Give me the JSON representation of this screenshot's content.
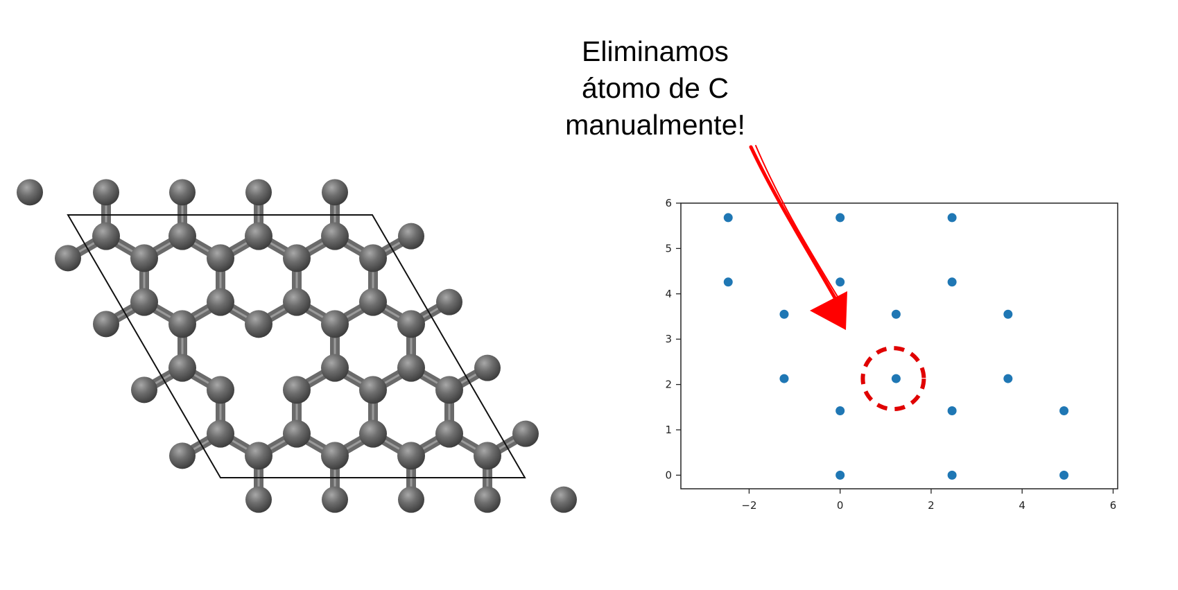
{
  "annotation": {
    "lines": [
      "Eliminamos",
      "átomo de C",
      "manualmente!"
    ]
  },
  "colors": {
    "point": "#1f77b4",
    "arrow": "#ff0000",
    "highlight": "#e00000",
    "atom": "#5e5e5e",
    "bond": "#6a6a6a"
  },
  "chart_data": {
    "type": "scatter",
    "title": "",
    "xlabel": "",
    "ylabel": "",
    "xlim": [
      -3.5,
      6.1
    ],
    "ylim": [
      -0.3,
      6.0
    ],
    "xticks": [
      -2,
      0,
      2,
      4,
      6
    ],
    "yticks": [
      0,
      1,
      2,
      3,
      4,
      5,
      6
    ],
    "points": [
      {
        "x": -2.46,
        "y": 5.68
      },
      {
        "x": 0.0,
        "y": 5.68
      },
      {
        "x": 2.46,
        "y": 5.68
      },
      {
        "x": -2.46,
        "y": 4.26
      },
      {
        "x": 0.0,
        "y": 4.26
      },
      {
        "x": 2.46,
        "y": 4.26
      },
      {
        "x": -1.23,
        "y": 3.55
      },
      {
        "x": 1.23,
        "y": 3.55
      },
      {
        "x": 3.69,
        "y": 3.55
      },
      {
        "x": -1.23,
        "y": 2.13
      },
      {
        "x": 1.23,
        "y": 2.13
      },
      {
        "x": 3.69,
        "y": 2.13
      },
      {
        "x": 0.0,
        "y": 1.42
      },
      {
        "x": 2.46,
        "y": 1.42
      },
      {
        "x": 4.92,
        "y": 1.42
      },
      {
        "x": 0.0,
        "y": 0.0
      },
      {
        "x": 2.46,
        "y": 0.0
      },
      {
        "x": 4.92,
        "y": 0.0
      }
    ],
    "highlight": {
      "x": 1.23,
      "y": 2.13,
      "style": "dashed-circle"
    },
    "grid": false
  }
}
